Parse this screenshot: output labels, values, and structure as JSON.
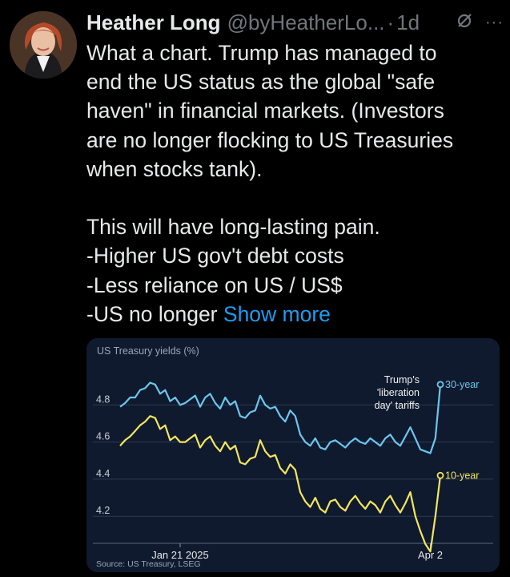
{
  "tweet": {
    "author_name": "Heather Long",
    "handle": "@byHeatherLo...",
    "separator": "·",
    "time": "1d",
    "grok_icon": "slash-circle-icon",
    "more_icon": "more-horizontal-icon",
    "more_label": "···",
    "lines": [
      "What a chart. Trump has managed to",
      "end the US status as the global \"safe",
      "haven\" in financial markets. (Investors",
      "are no longer flocking to US Treasuries",
      "when stocks tank).",
      "",
      "This will have long-lasting pain.",
      "-Higher US gov't debt costs",
      "-Less reliance on US / US$"
    ],
    "last_line_prefix": "-US no longer",
    "show_more": "Show more"
  },
  "chart_card": {
    "title": "US Treasury yields (%)",
    "source": "Source: US Treasury, LSEG",
    "annotation": [
      "Trump's",
      "'liberation",
      "day' tariffs"
    ],
    "colors": {
      "background": "#0f1a2e",
      "thirty_year": "#6cc6ee",
      "ten_year": "#f5e65b",
      "grid": "#2e3a50",
      "axis_text": "#c9cfd8"
    }
  },
  "chart_data": {
    "type": "line",
    "title": "US Treasury yields (%)",
    "xlabel": "",
    "ylabel": "",
    "ylim": [
      4.08,
      5.03
    ],
    "yticks": [
      4.2,
      4.4,
      4.6,
      4.8
    ],
    "ytick_labels": [
      "4.2",
      "4.4",
      "4.6",
      "4.8"
    ],
    "xtick_labels": [
      {
        "label": "Jan 21 2025",
        "index": 12
      },
      {
        "label": "Apr 2",
        "index": 62
      }
    ],
    "grid": true,
    "series": [
      {
        "name": "30-year",
        "values": [
          4.79,
          4.81,
          4.84,
          4.84,
          4.88,
          4.89,
          4.92,
          4.91,
          4.86,
          4.88,
          4.82,
          4.84,
          4.8,
          4.81,
          4.83,
          4.85,
          4.79,
          4.84,
          4.86,
          4.81,
          4.78,
          4.84,
          4.8,
          4.82,
          4.74,
          4.73,
          4.76,
          4.77,
          4.85,
          4.8,
          4.78,
          4.79,
          4.74,
          4.71,
          4.77,
          4.74,
          4.64,
          4.6,
          4.58,
          4.62,
          4.57,
          4.56,
          4.6,
          4.61,
          4.59,
          4.57,
          4.6,
          4.62,
          4.6,
          4.59,
          4.62,
          4.6,
          4.58,
          4.62,
          4.64,
          4.6,
          4.58,
          4.63,
          4.68,
          4.62,
          4.56,
          4.55,
          4.54,
          4.62,
          4.91
        ]
      },
      {
        "name": "10-year",
        "values": [
          4.58,
          4.61,
          4.63,
          4.66,
          4.69,
          4.71,
          4.74,
          4.73,
          4.67,
          4.69,
          4.61,
          4.63,
          4.6,
          4.6,
          4.62,
          4.64,
          4.57,
          4.61,
          4.63,
          4.58,
          4.55,
          4.6,
          4.56,
          4.58,
          4.49,
          4.48,
          4.51,
          4.52,
          4.61,
          4.55,
          4.52,
          4.53,
          4.46,
          4.43,
          4.48,
          4.45,
          4.33,
          4.28,
          4.25,
          4.3,
          4.24,
          4.22,
          4.28,
          4.29,
          4.25,
          4.23,
          4.28,
          4.31,
          4.27,
          4.24,
          4.28,
          4.26,
          4.22,
          4.28,
          4.31,
          4.26,
          4.22,
          4.27,
          4.33,
          4.2,
          4.12,
          4.05,
          4.01,
          4.2,
          4.42
        ]
      }
    ],
    "legend": "end-of-line labels"
  }
}
